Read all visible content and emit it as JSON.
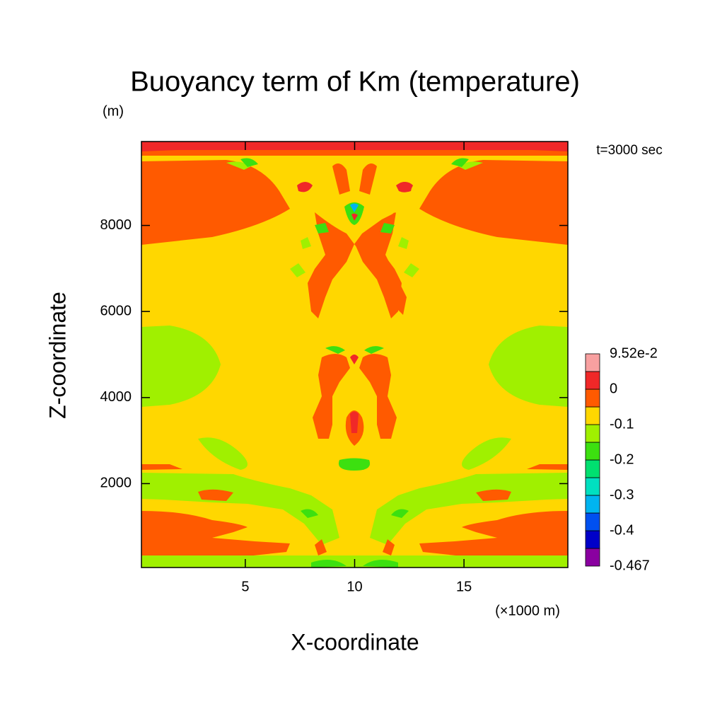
{
  "chart_data": {
    "type": "contour",
    "title": "Buoyancy term of Km (temperature)",
    "y_unit": "(m)",
    "annotation": "t=3000 sec",
    "x_label": "X-coordinate",
    "y_label": "Z-coordinate",
    "x_unit": "(×1000 m)",
    "xlim": [
      0.25,
      19.75
    ],
    "ylim": [
      50,
      9950
    ],
    "xticks": [
      5,
      10,
      15
    ],
    "yticks": [
      2000,
      4000,
      6000,
      8000
    ],
    "levels": [
      -0.467,
      -0.45,
      -0.4,
      -0.35,
      -0.3,
      -0.25,
      -0.2,
      -0.15,
      -0.1,
      -0.05,
      0,
      0.05,
      0.0952
    ],
    "colors": [
      "#8a00a0",
      "#0000c8",
      "#0050f0",
      "#00b4f0",
      "#00e0c0",
      "#00e070",
      "#3ce010",
      "#a0f000",
      "#ffd700",
      "#ff5a00",
      "#f02828",
      "#f8a0a0"
    ],
    "colorbar_ticks": [
      {
        "value": 0.0952,
        "label": "9.52e-2"
      },
      0,
      -0.1,
      -0.2,
      -0.3,
      -0.4,
      -0.467
    ]
  }
}
